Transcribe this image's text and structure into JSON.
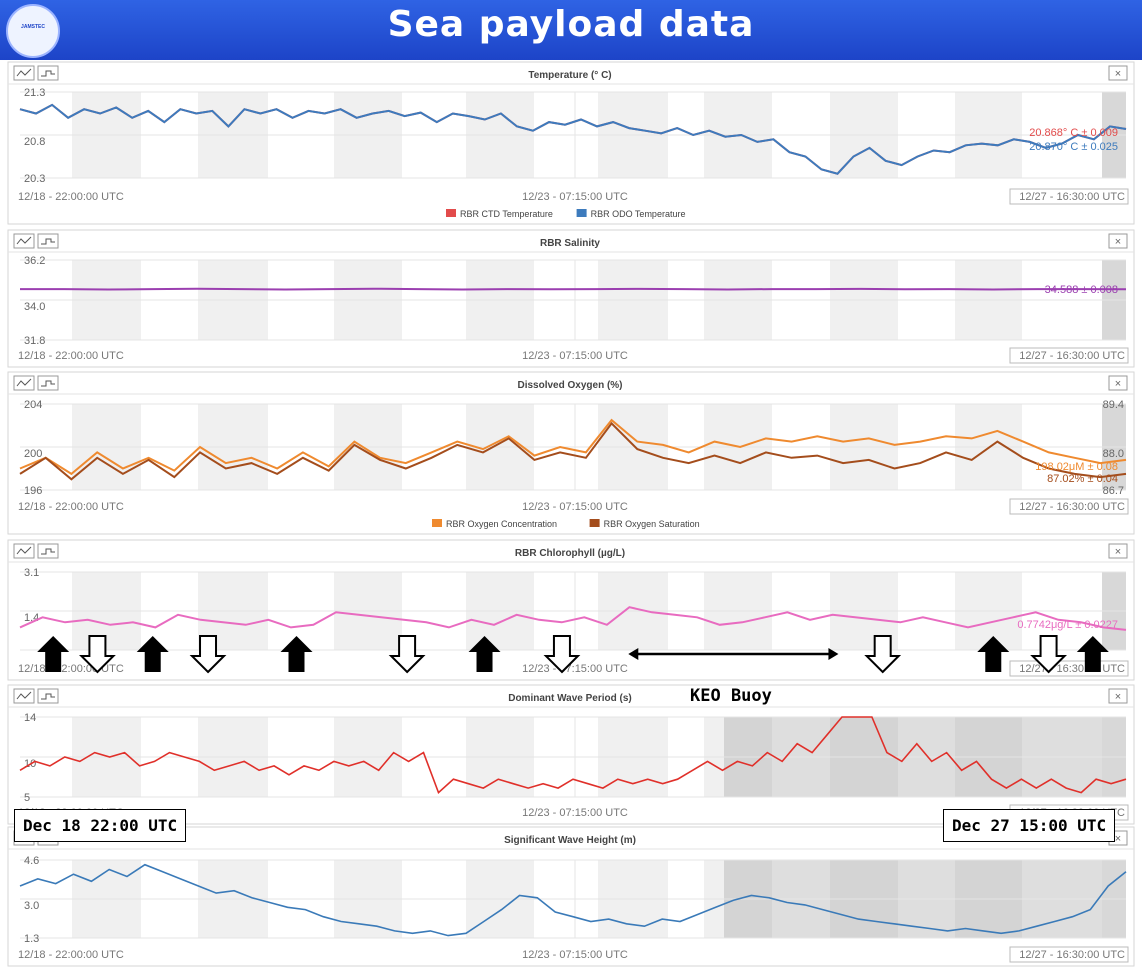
{
  "title": "Sea payload data",
  "logo_text": "JAMSTEC",
  "time_labels": {
    "start": "12/18 - 22:00:00 UTC",
    "mid": "12/23 - 07:15:00 UTC",
    "end": "12/27 - 16:30:00 UTC"
  },
  "annotations": {
    "keo": "KEO Buoy",
    "start_box": "Dec 18 22:00 UTC",
    "end_box": "Dec 27 15:00 UTC",
    "up_arrows": [
      0.03,
      0.12,
      0.25,
      0.42,
      0.88,
      0.97
    ],
    "down_arrows": [
      0.07,
      0.17,
      0.35,
      0.49,
      0.78,
      0.93
    ],
    "range_arrow": [
      0.55,
      0.74
    ]
  },
  "colors": {
    "red": "#e24b4b",
    "blue": "#3d7bbd",
    "purple": "#9b3fb0",
    "orange": "#ef8a2f",
    "brown": "#a44d1c",
    "pink": "#e86bc0",
    "wave_red": "#e0302a",
    "wave_blue": "#3a7ab8"
  },
  "chart_data": [
    {
      "type": "line",
      "title": "Temperature (° C)",
      "yticks": [
        "21.3",
        "20.8",
        "20.3"
      ],
      "ylim": [
        20.3,
        21.3
      ],
      "series": [
        {
          "name": "RBR CTD Temperature",
          "color": "#e24b4b",
          "values": [
            21.1,
            21.05,
            21.15,
            21.0,
            21.1,
            21.05,
            21.12,
            21.0,
            21.08,
            20.95,
            21.1,
            21.05,
            21.08,
            20.9,
            21.1,
            21.05,
            21.1,
            21.0,
            21.08,
            21.05,
            21.1,
            21.0,
            21.05,
            21.08,
            21.02,
            21.06,
            20.95,
            21.05,
            21.02,
            20.98,
            21.05,
            20.9,
            20.85,
            20.95,
            20.92,
            20.98,
            20.9,
            20.95,
            20.88,
            20.85,
            20.82,
            20.88,
            20.8,
            20.85,
            20.78,
            20.8,
            20.72,
            20.75,
            20.6,
            20.55,
            20.4,
            20.35,
            20.55,
            20.65,
            20.5,
            20.45,
            20.55,
            20.62,
            20.6,
            20.68,
            20.7,
            20.68,
            20.75,
            20.72,
            20.65,
            20.7,
            20.8,
            20.75,
            20.9,
            20.87
          ]
        },
        {
          "name": "RBR ODO Temperature",
          "color": "#3d7bbd",
          "values": [
            21.1,
            21.05,
            21.15,
            21.0,
            21.1,
            21.05,
            21.12,
            21.0,
            21.08,
            20.95,
            21.1,
            21.05,
            21.08,
            20.9,
            21.1,
            21.05,
            21.1,
            21.0,
            21.08,
            21.05,
            21.1,
            21.0,
            21.05,
            21.08,
            21.02,
            21.06,
            20.95,
            21.05,
            21.02,
            20.98,
            21.05,
            20.9,
            20.85,
            20.95,
            20.92,
            20.98,
            20.9,
            20.95,
            20.88,
            20.85,
            20.82,
            20.88,
            20.8,
            20.85,
            20.78,
            20.8,
            20.72,
            20.75,
            20.6,
            20.55,
            20.4,
            20.35,
            20.55,
            20.65,
            20.5,
            20.45,
            20.55,
            20.62,
            20.6,
            20.68,
            20.7,
            20.68,
            20.75,
            20.72,
            20.65,
            20.7,
            20.8,
            20.75,
            20.9,
            20.87
          ]
        }
      ],
      "current": [
        {
          "text": "20.868° C ± 0.009",
          "color": "#e24b4b"
        },
        {
          "text": "20.870° C ± 0.025",
          "color": "#3d7bbd"
        }
      ],
      "legend": [
        {
          "label": "RBR CTD Temperature",
          "color": "#e24b4b"
        },
        {
          "label": "RBR ODO Temperature",
          "color": "#3d7bbd"
        }
      ]
    },
    {
      "type": "line",
      "title": "RBR Salinity",
      "yticks": [
        "36.2",
        "34.0",
        "31.8"
      ],
      "ylim": [
        31.8,
        36.2
      ],
      "series": [
        {
          "name": "RBR Salinity",
          "color": "#9b3fb0",
          "values": [
            34.6,
            34.6,
            34.58,
            34.6,
            34.62,
            34.6,
            34.58,
            34.6,
            34.62,
            34.6,
            34.58,
            34.6,
            34.59,
            34.6,
            34.61,
            34.6,
            34.58,
            34.6,
            34.6,
            34.61,
            34.59,
            34.6,
            34.58,
            34.6,
            34.6,
            34.59
          ]
        }
      ],
      "current": [
        {
          "text": "34.588 ± 0.008",
          "color": "#9b3fb0"
        }
      ],
      "legend": []
    },
    {
      "type": "line",
      "title": "Dissolved Oxygen (%)",
      "yticks": [
        "204",
        "200",
        "196"
      ],
      "ylim": [
        196,
        204
      ],
      "right_ticks": [
        "89.4",
        "88.0",
        "86.7"
      ],
      "series": [
        {
          "name": "RBR Oxygen Concentration",
          "color": "#ef8a2f",
          "values": [
            198,
            199,
            197.5,
            199.5,
            198,
            199,
            197.8,
            200,
            198.5,
            199,
            198,
            199.5,
            198.2,
            200.5,
            199,
            198.5,
            199.5,
            200.5,
            199.8,
            201,
            199.2,
            200,
            199.5,
            202.5,
            200.5,
            200.2,
            199.5,
            200.5,
            200,
            200.8,
            200.5,
            201,
            200.5,
            200.8,
            200.2,
            200.5,
            201,
            200.8,
            201.5,
            200.5,
            199.5,
            199,
            198.5,
            198.8
          ]
        },
        {
          "name": "RBR Oxygen Saturation",
          "color": "#a44d1c",
          "values": [
            197.5,
            199,
            197,
            199,
            197.5,
            198.8,
            197.2,
            199.5,
            198,
            198.5,
            197.5,
            199,
            197.8,
            200.2,
            198.8,
            198,
            199,
            200.2,
            199.5,
            200.8,
            198.8,
            199.5,
            199,
            202.2,
            199.8,
            199,
            198.5,
            199.2,
            198.5,
            199.5,
            199,
            199.2,
            198.5,
            198.8,
            198,
            198.5,
            199.5,
            198.8,
            200.5,
            199,
            198,
            197.5,
            197.2,
            197.5
          ]
        }
      ],
      "current": [
        {
          "text": "198.02μM ± 0.08",
          "color": "#ef8a2f"
        },
        {
          "text": "87.02% ± 0.04",
          "color": "#a44d1c"
        }
      ],
      "legend": [
        {
          "label": "RBR Oxygen Concentration",
          "color": "#ef8a2f"
        },
        {
          "label": "RBR Oxygen Saturation",
          "color": "#a44d1c"
        }
      ]
    },
    {
      "type": "line",
      "title": "RBR Chlorophyll (µg/L)",
      "yticks": [
        "3.1",
        "1.4",
        ""
      ],
      "ylim": [
        0,
        3.1
      ],
      "series": [
        {
          "name": "RBR Chlorophyll",
          "color": "#e86bc0",
          "values": [
            0.9,
            1.3,
            1.1,
            1.2,
            1.0,
            1.1,
            0.9,
            1.4,
            1.2,
            1.1,
            1.0,
            1.2,
            0.9,
            1.0,
            1.5,
            1.4,
            1.3,
            1.2,
            1.1,
            0.9,
            1.2,
            1.0,
            1.4,
            1.2,
            1.1,
            1.3,
            1.0,
            1.7,
            1.5,
            1.4,
            1.3,
            1.0,
            1.1,
            1.3,
            1.5,
            1.2,
            1.4,
            1.3,
            1.2,
            1.1,
            1.3,
            1.1,
            0.9,
            1.1,
            1.3,
            1.5,
            1.2,
            1.1,
            0.9,
            0.8
          ]
        }
      ],
      "current": [
        {
          "text": "0.7742μg/L ± 0.0227",
          "color": "#e86bc0"
        }
      ],
      "legend": []
    },
    {
      "type": "line",
      "title": "Dominant Wave Period (s)",
      "yticks": [
        "14",
        "10",
        "5"
      ],
      "ylim": [
        5,
        14
      ],
      "series": [
        {
          "name": "Dominant Wave Period",
          "color": "#e0302a",
          "values": [
            8,
            9,
            8.5,
            9.5,
            9,
            10,
            9.5,
            10,
            8.5,
            9,
            10,
            9.5,
            9,
            8,
            8.5,
            9,
            8,
            8.5,
            7.5,
            8.5,
            8,
            9,
            8.5,
            9,
            8,
            10,
            9,
            10,
            5.5,
            7,
            6.5,
            6,
            7,
            6.5,
            6,
            6.5,
            6,
            7,
            6.5,
            6,
            7,
            6.5,
            7,
            6.5,
            7,
            8,
            9,
            8,
            9,
            8.5,
            10,
            9,
            11,
            10,
            12,
            14,
            14,
            14,
            10,
            9,
            11,
            9,
            10,
            8,
            9,
            7,
            6,
            7,
            6,
            7,
            6,
            5.5,
            7,
            6.5,
            7
          ]
        }
      ],
      "current": [],
      "legend": []
    },
    {
      "type": "line",
      "title": "Significant Wave Height (m)",
      "yticks": [
        "4.6",
        "3.0",
        "1.3"
      ],
      "ylim": [
        1.3,
        4.6
      ],
      "series": [
        {
          "name": "Significant Wave Height",
          "color": "#3a7ab8",
          "values": [
            3.5,
            3.8,
            3.6,
            4.0,
            3.7,
            4.2,
            3.9,
            4.4,
            4.1,
            3.8,
            3.5,
            3.2,
            3.3,
            3.0,
            2.8,
            2.6,
            2.5,
            2.2,
            2.0,
            1.9,
            1.8,
            1.6,
            1.5,
            1.6,
            1.4,
            1.5,
            2.0,
            2.5,
            3.1,
            3.0,
            2.4,
            2.2,
            2.0,
            2.1,
            1.9,
            1.8,
            2.1,
            2.0,
            2.3,
            2.6,
            2.9,
            3.1,
            3.0,
            2.8,
            2.7,
            2.5,
            2.3,
            2.1,
            2.0,
            1.9,
            1.8,
            1.7,
            1.6,
            1.7,
            1.6,
            1.5,
            1.6,
            1.8,
            2.0,
            2.2,
            2.5,
            3.5,
            4.1
          ]
        }
      ],
      "current": [],
      "legend": []
    }
  ]
}
